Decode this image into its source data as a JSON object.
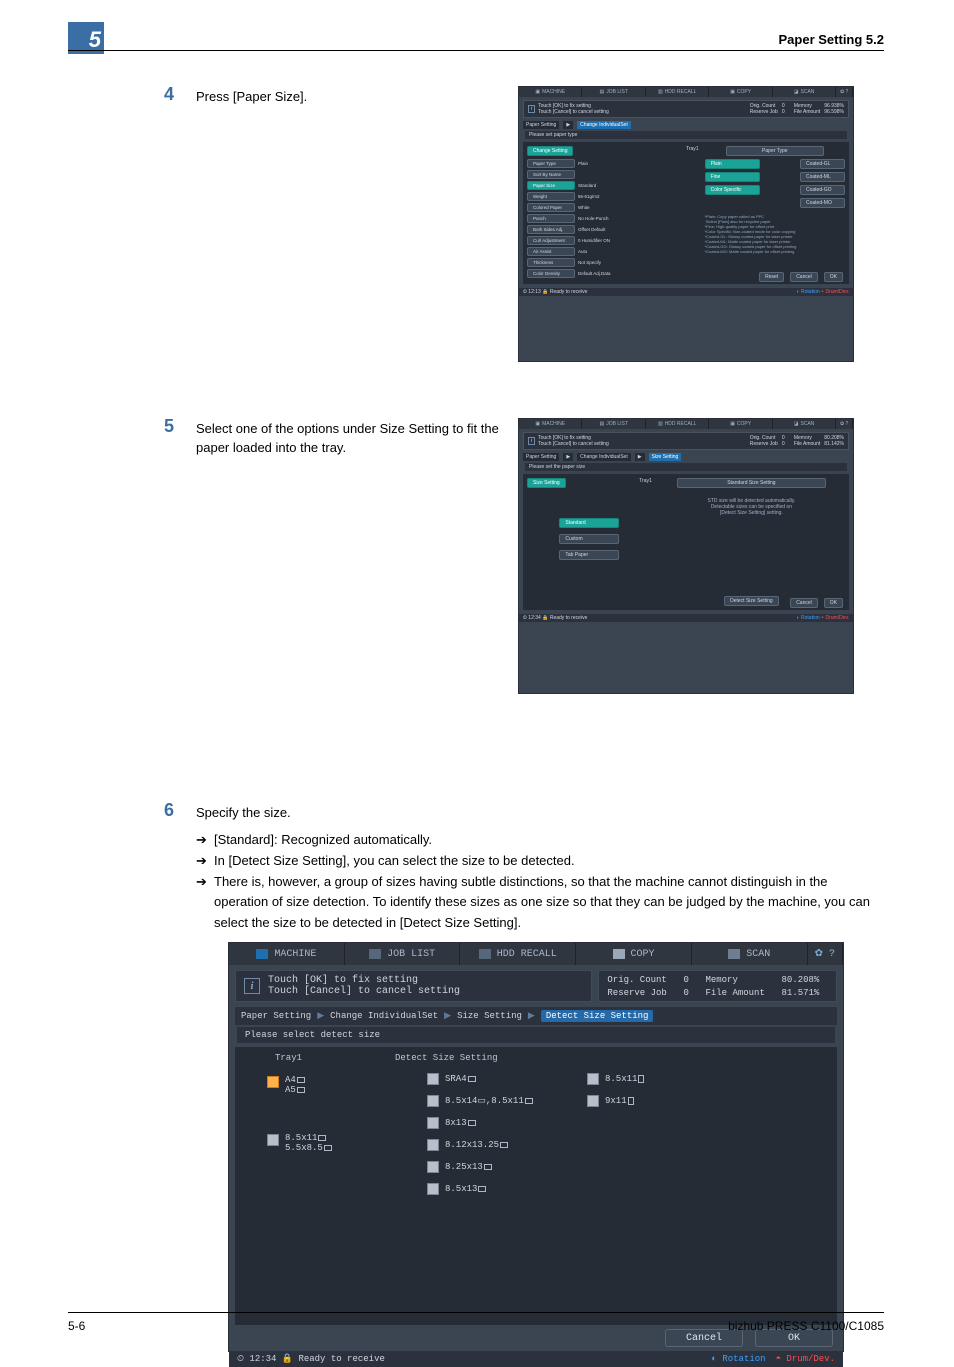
{
  "section_marker": "5",
  "header_right": "Paper Setting     5.2",
  "footer_left": "5-6",
  "footer_right": "bizhub PRESS C1100/C1085",
  "steps": {
    "s4": {
      "num": "4",
      "text": "Press [Paper Size]."
    },
    "s5": {
      "num": "5",
      "text": "Select one of the options under Size Setting to fit the paper loaded into the tray."
    },
    "s6": {
      "num": "6",
      "text": "Specify the size."
    },
    "bullets": [
      "[Standard]: Recognized automatically.",
      "In [Detect Size Setting], you can select the size to be detected.",
      "There is, however, a group of sizes having subtle distinctions, so that the machine cannot distinguish in the operation of size detection. To identify these sizes as one size so that they can be judged by the machine, you can select the size to be detected in [Detect Size Setting]."
    ]
  },
  "shot_common": {
    "tabs": [
      "MACHINE",
      "JOB LIST",
      "HDD RECALL",
      "COPY",
      "SCAN"
    ],
    "info_text": "Touch [OK] to fix setting\nTouch [Cancel] to cancel setting",
    "mem_label": "Memory",
    "file_label": "File Amount",
    "orig_label": "Orig. Count",
    "reserve_label": "Reserve Job",
    "ready": "Ready to receive",
    "rotation": "Rotation",
    "drum": "Drum/Dev."
  },
  "shot1": {
    "time": "12:13",
    "crumb": [
      "Paper Setting",
      "Change IndividualSet"
    ],
    "sub": "Please set paper type",
    "left_col_hdr": "Change Setting",
    "left_col_tray": "Tray1",
    "right_col_hdr": "Paper Type",
    "settings": [
      {
        "label": "Paper Type",
        "val": "Plain"
      },
      {
        "label": "Sort By Name",
        "val": ""
      },
      {
        "label": "Paper Size",
        "val": "Standard"
      },
      {
        "label": "Weight",
        "val": "55-61g/m2"
      },
      {
        "label": "Colored Paper",
        "val": "White"
      },
      {
        "label": "Punch",
        "val": "No Hole-Punch"
      },
      {
        "label": "Both Sides Adj.",
        "val": "Offset Default"
      },
      {
        "label": "Curl Adjustment",
        "val": "0  Humidifier ON"
      },
      {
        "label": "Air Assist",
        "val": "Auto"
      },
      {
        "label": "Thickness",
        "val": "Not Specify"
      },
      {
        "label": "Color Density",
        "val": "Default Adj.Data"
      }
    ],
    "types": [
      {
        "name": "Plain",
        "btn": "Coated-GL"
      },
      {
        "name": "Fine",
        "btn": "Coated-ML"
      },
      {
        "name": "Color Specific",
        "btn": "Coated-GO"
      },
      {
        "name": "",
        "btn": "Coated-MO"
      }
    ],
    "note": "*Plain: Copy paper called as PPC\n Select [Plain] also for recycled paper\n*Fine: High-quality paper for offset print\n*Color Specific: Non-coated mode for color copying\n*Coated-GL: Glossy coated paper for laser printer\n*Coated-ML: Matte coated paper for laser printer\n*Coated-GO: Glossy coated paper for offset printing\n*Coated-MO: Matte coated paper for offset printing",
    "foot": [
      "Reset",
      "Cancel",
      "OK"
    ],
    "memory": "96.938%",
    "file": "96.598%",
    "counts": [
      "0",
      "0"
    ]
  },
  "shot2": {
    "time": "12:34",
    "crumb": [
      "Paper Setting",
      "Change IndividualSet",
      "Size Setting"
    ],
    "sub": "Please set the paper size",
    "left_hdr": "Size Setting",
    "left_tray": "Tray1",
    "right_hdr": "Standard Size Setting",
    "note": "STD size will be detected automatically.\nDetectable sizes can be specified on\n[Detect Size Setting] setting.",
    "btns": [
      "Standard",
      "Custom",
      "Tab Paper"
    ],
    "detect": "Detect Size Setting",
    "foot": [
      "Cancel",
      "OK"
    ],
    "memory": "80.208%",
    "file": "81.142%",
    "counts": [
      "0",
      "0"
    ]
  },
  "shot3": {
    "time": "12:34",
    "crumb": [
      "Paper Setting",
      "Change IndividualSet",
      "Size Setting",
      "Detect Size Setting"
    ],
    "sub": "Please select detect size",
    "hdr_tray": "Tray1",
    "hdr_sect": "Detect Size Setting",
    "col1": [
      {
        "sel": true,
        "lines": [
          "A4",
          "A5"
        ],
        "orients": [
          "l",
          "l"
        ]
      },
      {
        "sel": false,
        "lines": [
          "8.5x11",
          "5.5x8.5"
        ],
        "orients": [
          "l",
          "l"
        ]
      }
    ],
    "col2": [
      {
        "sel": false,
        "text": "SRA4",
        "o": "l"
      },
      {
        "sel": false,
        "text": "8.5x14▭,8.5x11",
        "o": "l"
      },
      {
        "sel": false,
        "text": "8x13",
        "o": "l"
      },
      {
        "sel": false,
        "text": "8.12x13.25",
        "o": "l"
      },
      {
        "sel": false,
        "text": "8.25x13",
        "o": "l"
      },
      {
        "sel": false,
        "text": "8.5x13",
        "o": "l"
      }
    ],
    "col3": [
      {
        "sel": false,
        "text": "8.5x11",
        "o": "p"
      },
      {
        "sel": false,
        "text": "9x11",
        "o": "p"
      }
    ],
    "foot": [
      "Cancel",
      "OK"
    ],
    "memory": "80.208%",
    "file": "81.571%",
    "counts": [
      "0",
      "0"
    ]
  }
}
